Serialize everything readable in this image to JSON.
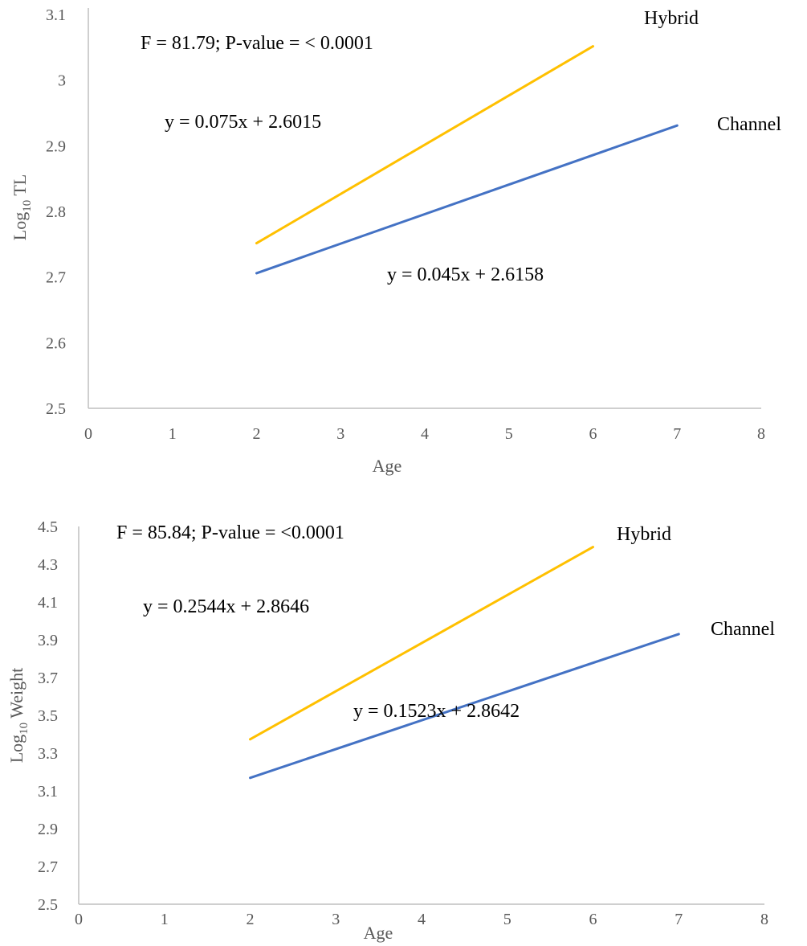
{
  "chart_data": [
    {
      "type": "line",
      "xlabel": "Age",
      "ylabel_main": "Log",
      "ylabel_sub": "10",
      "ylabel_rest": " TL",
      "xlim": [
        0,
        8
      ],
      "ylim": [
        2.5,
        3.1
      ],
      "x_ticks": [
        "0",
        "1",
        "2",
        "3",
        "4",
        "5",
        "6",
        "7",
        "8"
      ],
      "y_ticks": [
        "2.5",
        "2.6",
        "2.7",
        "2.8",
        "2.9",
        "3",
        "3.1"
      ],
      "stat_text": "F = 81.79; P-value = < 0.0001",
      "series": [
        {
          "name": "Hybrid",
          "color": "#ffc000",
          "x": [
            2,
            6
          ],
          "y": [
            2.7515,
            3.0515
          ],
          "equation": "y = 0.075x + 2.6015"
        },
        {
          "name": "Channel",
          "color": "#4472c4",
          "x": [
            2,
            7
          ],
          "y": [
            2.7058,
            2.9308
          ],
          "equation": "y = 0.045x + 2.6158"
        }
      ]
    },
    {
      "type": "line",
      "xlabel": "Age",
      "ylabel_main": "Log",
      "ylabel_sub": "10",
      "ylabel_rest": " Weight",
      "xlim": [
        0,
        8
      ],
      "ylim": [
        2.5,
        4.5
      ],
      "x_ticks": [
        "0",
        "1",
        "2",
        "3",
        "4",
        "5",
        "6",
        "7",
        "8"
      ],
      "y_ticks": [
        "2.5",
        "2.7",
        "2.9",
        "3.1",
        "3.3",
        "3.5",
        "3.7",
        "3.9",
        "4.1",
        "4.3",
        "4.5"
      ],
      "stat_text": "F = 85.84; P-value = <0.0001",
      "series": [
        {
          "name": "Hybrid",
          "color": "#ffc000",
          "x": [
            2,
            6
          ],
          "y": [
            3.3734,
            4.391
          ],
          "equation": "y = 0.2544x + 2.8646"
        },
        {
          "name": "Channel",
          "color": "#4472c4",
          "x": [
            2,
            7
          ],
          "y": [
            3.1688,
            3.9303
          ],
          "equation": "y = 0.1523x + 2.8642"
        }
      ]
    }
  ]
}
